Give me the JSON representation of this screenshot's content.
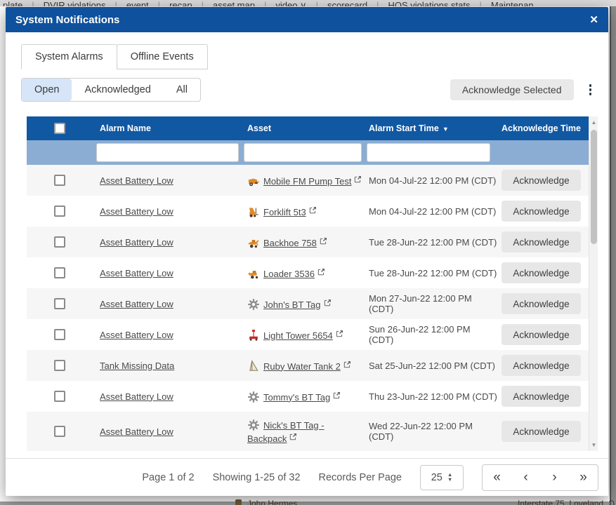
{
  "background": {
    "top_nav": [
      "plate",
      "DVIR violations",
      "event",
      "recap",
      "asset map",
      "video ∨",
      "scorecard",
      "HOS violations stats",
      "Maintenan"
    ],
    "bottom_left_text": "John Hermes",
    "bottom_right_text": "Interstate 75, Loveland, O"
  },
  "modal": {
    "title": "System Notifications",
    "close_icon": "✕"
  },
  "tabs": [
    {
      "label": "System Alarms",
      "active": true
    },
    {
      "label": "Offline Events",
      "active": false
    }
  ],
  "filters": {
    "options": [
      {
        "label": "Open",
        "selected": true
      },
      {
        "label": "Acknowledged",
        "selected": false
      },
      {
        "label": "All",
        "selected": false
      }
    ]
  },
  "toolbar": {
    "acknowledge_selected_label": "Acknowledge Selected",
    "more_menu_icon": "kebab-vertical"
  },
  "table": {
    "columns": [
      "Alarm Name",
      "Asset",
      "Alarm Start Time",
      "Acknowledge Time"
    ],
    "sort_column": "Alarm Start Time",
    "sort_direction": "desc",
    "sort_icon": "▼",
    "filter_row": {
      "alarm_value": "",
      "asset_value": "",
      "start_time_value": ""
    },
    "rows": [
      {
        "alarm": "Asset Battery Low",
        "asset": "Mobile FM Pump Test",
        "icon": "pump",
        "start_time": "Mon 04-Jul-22 12:00 PM (CDT)",
        "action_label": "Acknowledge"
      },
      {
        "alarm": "Asset Battery Low",
        "asset": "Forklift 5t3",
        "icon": "forklift",
        "start_time": "Mon 04-Jul-22 12:00 PM (CDT)",
        "action_label": "Acknowledge"
      },
      {
        "alarm": "Asset Battery Low",
        "asset": "Backhoe 758",
        "icon": "backhoe",
        "start_time": "Tue 28-Jun-22 12:00 PM (CDT)",
        "action_label": "Acknowledge"
      },
      {
        "alarm": "Asset Battery Low",
        "asset": "Loader 3536",
        "icon": "loader",
        "start_time": "Tue 28-Jun-22 12:00 PM (CDT)",
        "action_label": "Acknowledge"
      },
      {
        "alarm": "Asset Battery Low",
        "asset": "John's BT Tag",
        "icon": "bt-tag",
        "start_time": "Mon 27-Jun-22 12:00 PM (CDT)",
        "action_label": "Acknowledge"
      },
      {
        "alarm": "Asset Battery Low",
        "asset": "Light Tower 5654",
        "icon": "light-tower",
        "start_time": "Sun 26-Jun-22 12:00 PM (CDT)",
        "action_label": "Acknowledge"
      },
      {
        "alarm": "Tank Missing Data",
        "asset": "Ruby Water Tank 2",
        "icon": "water-tank",
        "start_time": "Sat 25-Jun-22 12:00 PM (CDT)",
        "action_label": "Acknowledge"
      },
      {
        "alarm": "Asset Battery Low",
        "asset": "Tommy's BT Tag",
        "icon": "bt-tag",
        "start_time": "Thu 23-Jun-22 12:00 PM (CDT)",
        "action_label": "Acknowledge"
      },
      {
        "alarm": "Asset Battery Low",
        "asset": "Nick's BT Tag - Backpack",
        "icon": "bt-tag",
        "start_time": "Wed 22-Jun-22 12:00 PM (CDT)",
        "action_label": "Acknowledge"
      }
    ]
  },
  "pagination": {
    "page_text": "Page 1 of 2",
    "showing_text": "Showing 1-25 of 32",
    "records_label": "Records Per Page",
    "per_page": "25",
    "first_icon": "«",
    "prev_icon": "‹",
    "next_icon": "›",
    "last_icon": "»"
  },
  "colors": {
    "title_bar": "#0f519c",
    "table_header": "#1158a3",
    "filter_row": "#8badd3",
    "selected_segment": "#d6e5f8",
    "button_gray": "#e7e7e7",
    "asset_icon_orange": "#e08a28",
    "light_tower_red": "#cc2626"
  }
}
